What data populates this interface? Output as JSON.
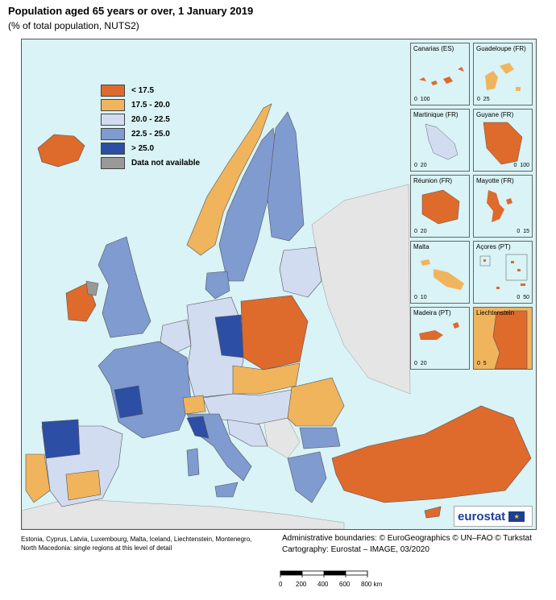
{
  "title": "Population aged 65 years or over, 1 January 2019",
  "subtitle": "(% of total population, NUTS2)",
  "colors": {
    "c1": "#de6a2c",
    "c2": "#f0b45d",
    "c3": "#d1dcf0",
    "c4": "#7f9bd0",
    "c5": "#2c4ea5",
    "na": "#999999",
    "sea": "#d9f3f6",
    "nonEU": "#e5e5e5"
  },
  "legend": {
    "items": [
      {
        "label": "< 17.5",
        "color": "#de6a2c"
      },
      {
        "label": "17.5 - 20.0",
        "color": "#f0b45d"
      },
      {
        "label": "20.0 - 22.5",
        "color": "#d1dcf0"
      },
      {
        "label": "22.5 - 25.0",
        "color": "#7f9bd0"
      },
      {
        "label": "> 25.0",
        "color": "#2c4ea5"
      },
      {
        "label": "Data not available",
        "color": "#999999"
      }
    ]
  },
  "insets": [
    {
      "label": "Canarias (ES)",
      "scale": [
        "0",
        "100"
      ]
    },
    {
      "label": "Guadeloupe (FR)",
      "scale": [
        "0",
        "25"
      ]
    },
    {
      "label": "Martinique (FR)",
      "scale": [
        "0",
        "20"
      ]
    },
    {
      "label": "Guyane (FR)",
      "scale": [
        "0",
        "100"
      ]
    },
    {
      "label": "Réunion (FR)",
      "scale": [
        "0",
        "20"
      ]
    },
    {
      "label": "Mayotte (FR)",
      "scale": [
        "0",
        "15"
      ]
    },
    {
      "label": "Malta",
      "scale": [
        "0",
        "10"
      ]
    },
    {
      "label": "Açores (PT)",
      "scale": [
        "0",
        "50"
      ]
    },
    {
      "label": "Madeira (PT)",
      "scale": [
        "0",
        "20"
      ]
    },
    {
      "label": "Liechtenstein",
      "scale": [
        "0",
        "5"
      ]
    }
  ],
  "logo": {
    "text": "eurostat"
  },
  "footnote": "Estonia, Cyprus, Latvia, Luxembourg, Malta, Iceland, Liechtenstein, Montenegro, North Macedonia: single regions at this level of detail",
  "credits": {
    "boundaries": "Administrative boundaries: © EuroGeographics © UN–FAO © Turkstat",
    "cartography": "Cartography: Eurostat – IMAGE, 03/2020"
  },
  "scalebar": {
    "labels": [
      "0",
      "200",
      "400",
      "600",
      "800 km"
    ]
  }
}
